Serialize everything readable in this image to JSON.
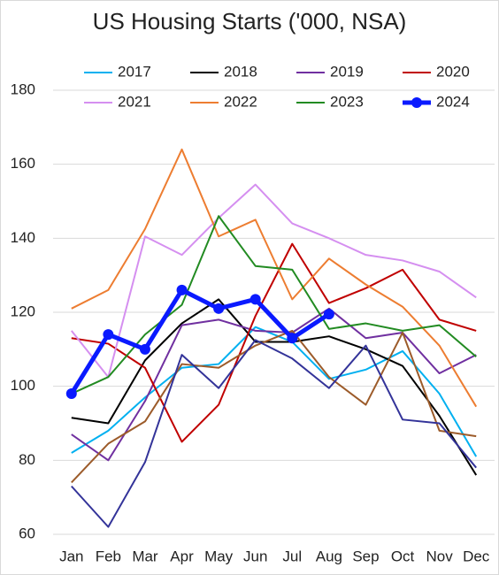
{
  "chart_data": {
    "type": "line",
    "title": "US Housing Starts ('000, NSA)",
    "categories": [
      "Jan",
      "Feb",
      "Mar",
      "Apr",
      "May",
      "Jun",
      "Jul",
      "Aug",
      "Sep",
      "Oct",
      "Nov",
      "Dec"
    ],
    "ylim": [
      60,
      180
    ],
    "yticks": [
      60,
      80,
      100,
      120,
      140,
      160,
      180
    ],
    "grid": true,
    "legend": "top",
    "series": [
      {
        "name": "2017",
        "color": "#00b0f0",
        "values": [
          82,
          88,
          97,
          105,
          106,
          116,
          112,
          102,
          104.5,
          109.5,
          98,
          81
        ]
      },
      {
        "name": "2018",
        "color": "#000000",
        "values": [
          91.5,
          90,
          107,
          117,
          123.5,
          112,
          112,
          113.5,
          110,
          105.5,
          92,
          76
        ]
      },
      {
        "name": "2019",
        "color": "#7030a0",
        "values": [
          87,
          80,
          96,
          116.5,
          118,
          115,
          114.5,
          121,
          113,
          114.5,
          103.5,
          108.5
        ]
      },
      {
        "name": "2020",
        "color": "#c00000",
        "values": [
          113,
          111.5,
          105,
          85,
          95,
          119,
          138.5,
          122.5,
          126.5,
          131.5,
          118,
          115
        ]
      },
      {
        "name": "2021",
        "color": "#d58ff0",
        "values": [
          115,
          102.5,
          140.5,
          135.5,
          145.5,
          154.5,
          144,
          140,
          135.5,
          134,
          131,
          124
        ]
      },
      {
        "name": "2022",
        "color": "#ed7d31",
        "values": [
          121,
          126,
          142.5,
          164,
          140.5,
          145,
          123.5,
          134.5,
          127.5,
          121.5,
          111,
          94.5
        ]
      },
      {
        "name": "2023",
        "color": "#228b22",
        "values": [
          98,
          102.5,
          114,
          122,
          146,
          132.5,
          131.5,
          115.5,
          117,
          115,
          116.5,
          108
        ]
      },
      {
        "color": "#9c5b2a",
        "values": [
          74,
          84.5,
          90.5,
          106,
          105,
          111,
          115,
          102.5,
          95,
          114.5,
          88,
          86.5
        ]
      },
      {
        "color": "#333399",
        "values": [
          73,
          62,
          79.5,
          108.5,
          99.5,
          112.5,
          107.5,
          99.5,
          111,
          91,
          90,
          78
        ]
      },
      {
        "name": "2024",
        "color": "#0a1aff",
        "bold": true,
        "values": [
          98,
          114,
          110,
          126,
          121,
          123.5,
          113,
          119.5,
          null,
          null,
          null,
          null
        ]
      }
    ]
  }
}
